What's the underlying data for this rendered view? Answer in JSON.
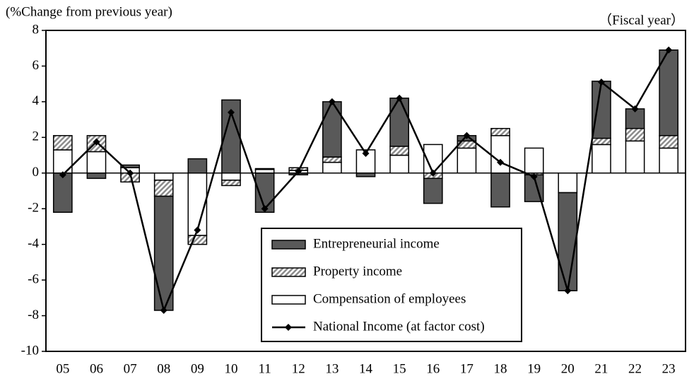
{
  "chart_data": {
    "type": "bar",
    "title": "(%Change from previous year)",
    "x_label": "（Fiscal year）",
    "categories": [
      "05",
      "06",
      "07",
      "08",
      "09",
      "10",
      "11",
      "12",
      "13",
      "14",
      "15",
      "16",
      "17",
      "18",
      "19",
      "20",
      "21",
      "22",
      "23"
    ],
    "series": [
      {
        "name": "Entrepreneurial income",
        "color": "#595959",
        "values": [
          -2.2,
          -0.3,
          0.15,
          -6.4,
          0.8,
          4.1,
          -2.2,
          -0.1,
          3.1,
          -0.2,
          2.7,
          -1.4,
          0.3,
          -1.9,
          -1.5,
          -5.5,
          3.2,
          1.1,
          4.8
        ]
      },
      {
        "name": "Property income",
        "color": "#a6a6a6",
        "hatch": true,
        "values": [
          0.8,
          0.9,
          -0.5,
          -0.9,
          -0.5,
          -0.3,
          0.05,
          0.15,
          0.3,
          0.0,
          0.5,
          -0.3,
          0.4,
          0.4,
          -0.1,
          0.0,
          0.35,
          0.7,
          0.7
        ]
      },
      {
        "name": "Compensation of employees",
        "color": "#ffffff",
        "values": [
          1.3,
          1.2,
          0.3,
          -0.4,
          -3.5,
          -0.4,
          0.2,
          0.15,
          0.6,
          1.3,
          1.0,
          1.6,
          1.4,
          2.1,
          1.4,
          -1.1,
          1.6,
          1.8,
          1.4
        ]
      },
      {
        "name": "National Income (at factor cost)",
        "type": "line",
        "color": "#000000",
        "values": [
          -0.1,
          1.75,
          0.0,
          -7.7,
          -3.2,
          3.4,
          -2.0,
          0.1,
          4.0,
          1.1,
          4.2,
          0.0,
          2.1,
          0.6,
          -0.2,
          -6.6,
          5.1,
          3.6,
          6.9
        ]
      }
    ],
    "stack_order": [
      2,
      1,
      0
    ],
    "ylim": [
      -10,
      8
    ],
    "yticks": [
      -10,
      -8,
      -6,
      -4,
      -2,
      0,
      2,
      4,
      6,
      8
    ],
    "legend": "bottom-center"
  }
}
